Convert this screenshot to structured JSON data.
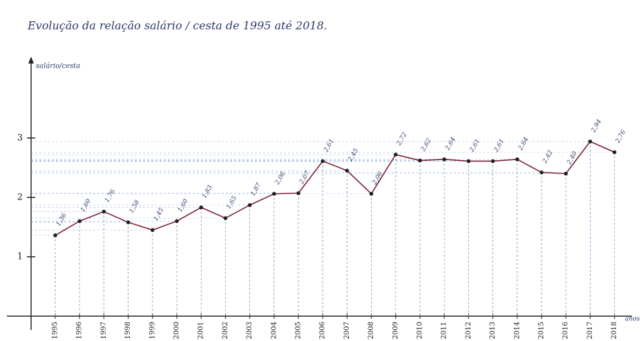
{
  "chart_data": {
    "type": "line",
    "title": "Evolução da relação salário / cesta de 1995 até 2018.",
    "y_label": "salário/cesta",
    "x_label": "anos",
    "categories": [
      "1995",
      "1996",
      "1997",
      "1998",
      "1999",
      "2000",
      "2001",
      "2002",
      "2003",
      "2004",
      "2005",
      "2006",
      "2007",
      "2008",
      "2009",
      "2010",
      "2011",
      "2012",
      "2013",
      "2014",
      "2015",
      "2016",
      "2017",
      "2018"
    ],
    "series": [
      {
        "color": "#7a1f3a",
        "values": [
          1.36,
          1.6,
          1.76,
          1.58,
          1.45,
          1.6,
          1.83,
          1.65,
          1.87,
          2.06,
          2.07,
          2.61,
          2.45,
          2.06,
          2.72,
          2.62,
          2.64,
          2.61,
          2.61,
          2.64,
          2.42,
          2.4,
          2.94,
          2.76
        ],
        "value_labels": [
          "1,36",
          "1,60",
          "1,76",
          "1,58",
          "1,45",
          "1,60",
          "1,83",
          "1,65",
          "1,87",
          "2,06",
          "2,07",
          "2,61",
          "2,45",
          "2,06",
          "2,72",
          "2,62",
          "2,64",
          "2,61",
          "2,61",
          "2,64",
          "2,42",
          "2,40",
          "2,94",
          "2,76"
        ]
      }
    ],
    "ylim": [
      0,
      4.3
    ],
    "yticks": [
      1,
      2,
      3
    ],
    "grid": true
  }
}
